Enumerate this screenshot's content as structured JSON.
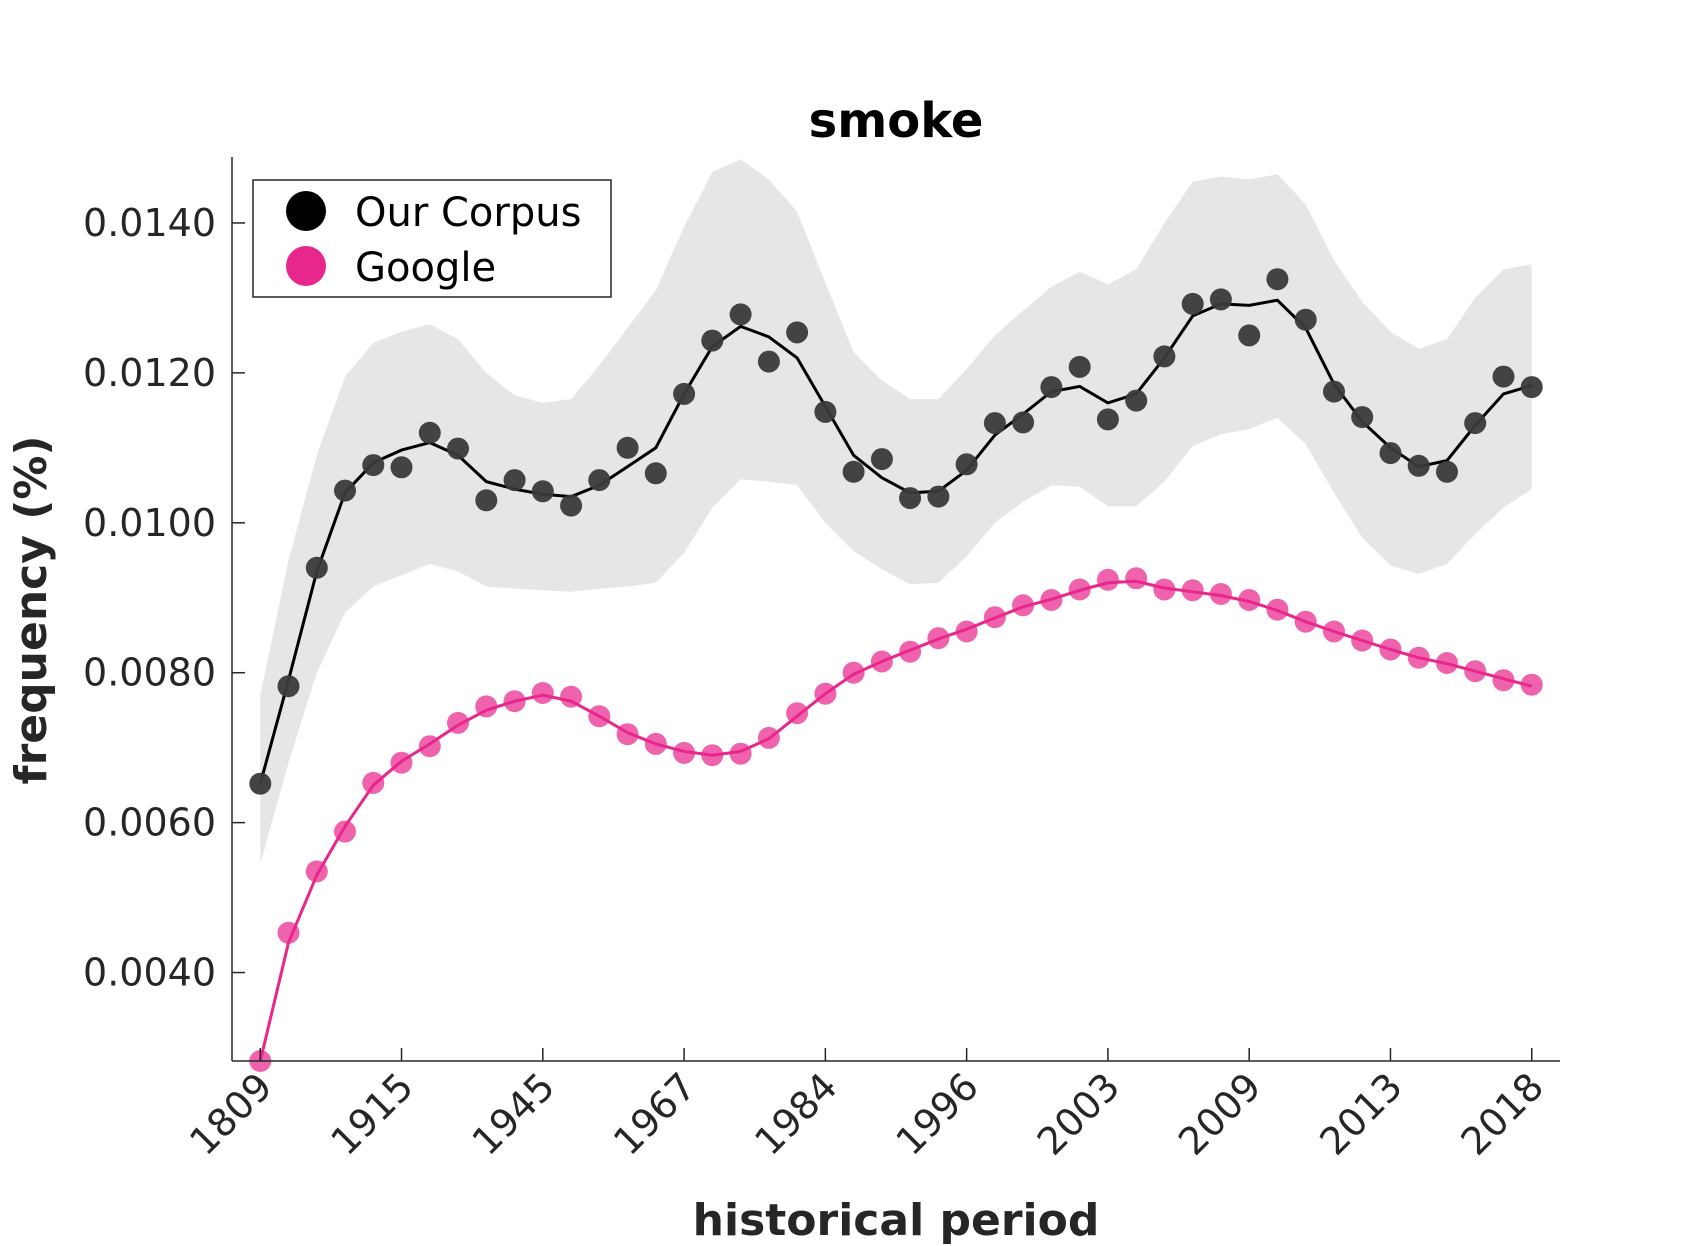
{
  "chart_data": {
    "type": "scatter",
    "title": "smoke",
    "xlabel": "historical period",
    "ylabel": "frequency (%)",
    "x_tick_labels": [
      "1809",
      "1915",
      "1945",
      "1967",
      "1984",
      "1996",
      "2003",
      "2009",
      "2013",
      "2018"
    ],
    "x_tick_indices": [
      0,
      5,
      10,
      15,
      20,
      25,
      30,
      35,
      40,
      45
    ],
    "xlim": [
      -1,
      46
    ],
    "y_ticks": [
      0.004,
      0.006,
      0.008,
      0.01,
      0.012,
      0.014
    ],
    "y_tick_labels": [
      "0.0040",
      "0.0060",
      "0.0080",
      "0.0100",
      "0.0120",
      "0.0140"
    ],
    "ylim": [
      0.00282,
      0.01488
    ],
    "grid": false,
    "legend_position": "top-left",
    "colors": {
      "corpus_points": "#3a3a3a",
      "corpus_line": "#000000",
      "band": "#e6e6e6",
      "google": "#e8278c"
    },
    "series": [
      {
        "name": "Our Corpus",
        "legend_color": "#000000",
        "values": [
          0.00652,
          0.00782,
          0.0094,
          0.01043,
          0.01077,
          0.01074,
          0.0112,
          0.01099,
          0.0103,
          0.01057,
          0.01042,
          0.01023,
          0.01057,
          0.011,
          0.01066,
          0.01172,
          0.01243,
          0.01278,
          0.01215,
          0.01254,
          0.01148,
          0.01068,
          0.01085,
          0.01033,
          0.01035,
          0.01078,
          0.01133,
          0.01134,
          0.01181,
          0.01208,
          0.01138,
          0.01163,
          0.01222,
          0.01292,
          0.01298,
          0.0125,
          0.01325,
          0.01271,
          0.01175,
          0.01141,
          0.01093,
          0.01076,
          0.01068,
          0.01133,
          0.01195,
          0.01181
        ],
        "smoothed": [
          0.00652,
          0.0079,
          0.00935,
          0.0104,
          0.0108,
          0.01097,
          0.01107,
          0.0109,
          0.01055,
          0.01045,
          0.01038,
          0.01035,
          0.0105,
          0.01075,
          0.011,
          0.01172,
          0.01235,
          0.01262,
          0.01248,
          0.0122,
          0.01155,
          0.0109,
          0.0106,
          0.0104,
          0.01042,
          0.0107,
          0.01117,
          0.01145,
          0.01175,
          0.01182,
          0.0116,
          0.01172,
          0.0122,
          0.01276,
          0.01292,
          0.0129,
          0.01297,
          0.0126,
          0.01185,
          0.01135,
          0.011,
          0.01075,
          0.01083,
          0.0113,
          0.01172,
          0.01183
        ],
        "band_upper": [
          0.0077,
          0.0095,
          0.0109,
          0.01195,
          0.0124,
          0.01255,
          0.01265,
          0.01245,
          0.012,
          0.0117,
          0.0116,
          0.01165,
          0.0121,
          0.0126,
          0.0131,
          0.01395,
          0.01468,
          0.01485,
          0.01458,
          0.01415,
          0.0132,
          0.01228,
          0.0119,
          0.01165,
          0.01165,
          0.01205,
          0.0125,
          0.01283,
          0.01315,
          0.01335,
          0.01318,
          0.01338,
          0.014,
          0.01455,
          0.01462,
          0.01458,
          0.01465,
          0.01425,
          0.0135,
          0.01295,
          0.01255,
          0.01232,
          0.01245,
          0.013,
          0.01338,
          0.01345
        ],
        "band_lower": [
          0.00545,
          0.0068,
          0.008,
          0.0088,
          0.00915,
          0.0093,
          0.00945,
          0.00935,
          0.00915,
          0.00912,
          0.0091,
          0.00908,
          0.00912,
          0.00915,
          0.0092,
          0.0096,
          0.0102,
          0.01058,
          0.01055,
          0.0105,
          0.01,
          0.00962,
          0.00938,
          0.00918,
          0.0092,
          0.00955,
          0.01,
          0.01028,
          0.0105,
          0.01048,
          0.01022,
          0.01022,
          0.01055,
          0.01102,
          0.01118,
          0.01125,
          0.0114,
          0.01105,
          0.0104,
          0.0098,
          0.00943,
          0.00932,
          0.00945,
          0.00985,
          0.0102,
          0.01045
        ]
      },
      {
        "name": "Google",
        "legend_color": "#e8278c",
        "values": [
          0.00282,
          0.00453,
          0.00535,
          0.00588,
          0.00653,
          0.0068,
          0.00702,
          0.00733,
          0.00755,
          0.00762,
          0.00773,
          0.00768,
          0.00742,
          0.00718,
          0.00705,
          0.00693,
          0.0069,
          0.00692,
          0.00713,
          0.00746,
          0.00772,
          0.008,
          0.00815,
          0.00828,
          0.00846,
          0.00855,
          0.00874,
          0.0089,
          0.00897,
          0.00911,
          0.00924,
          0.00926,
          0.00911,
          0.0091,
          0.00905,
          0.00897,
          0.00884,
          0.00868,
          0.00855,
          0.00843,
          0.00831,
          0.0082,
          0.00813,
          0.00802,
          0.0079,
          0.00784
        ],
        "smoothed": [
          0.00282,
          0.0044,
          0.0053,
          0.00595,
          0.0065,
          0.00682,
          0.00705,
          0.0073,
          0.0075,
          0.00762,
          0.0077,
          0.00762,
          0.00742,
          0.0072,
          0.00705,
          0.00695,
          0.0069,
          0.00695,
          0.00712,
          0.00742,
          0.00772,
          0.00798,
          0.00815,
          0.0083,
          0.00845,
          0.00858,
          0.00873,
          0.00888,
          0.00898,
          0.0091,
          0.0092,
          0.00922,
          0.00913,
          0.00908,
          0.00903,
          0.00895,
          0.00883,
          0.00868,
          0.00855,
          0.00843,
          0.00831,
          0.0082,
          0.00812,
          0.00802,
          0.00792,
          0.00782
        ]
      }
    ]
  }
}
